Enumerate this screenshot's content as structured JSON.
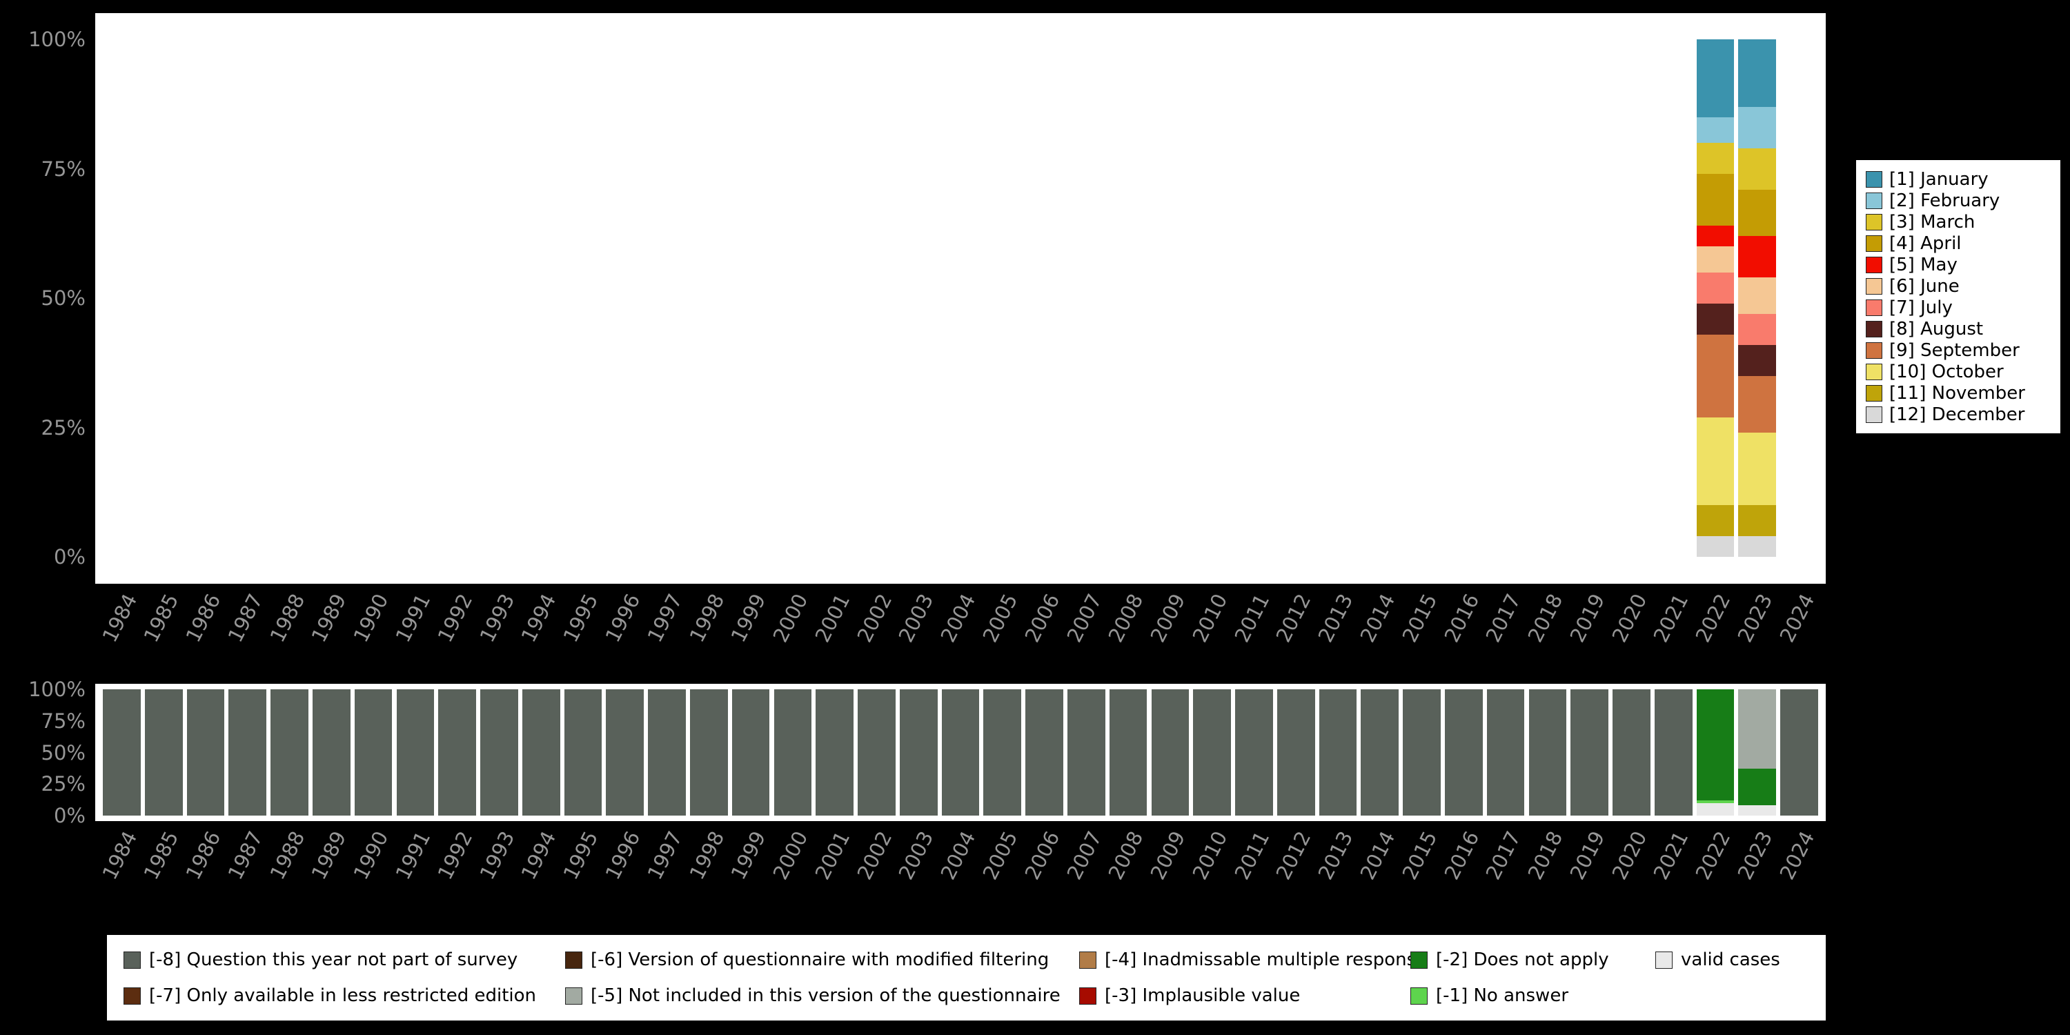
{
  "colors": {
    "background": "#000000",
    "panel": "#ffffff",
    "axis_text": "#969696"
  },
  "chart_data": [
    {
      "id": "months",
      "type": "bar",
      "stacked": true,
      "title": "",
      "xlabel": "",
      "ylabel": "",
      "ylim": [
        0,
        100
      ],
      "grid": false,
      "legend_position": "right",
      "yticks": [
        0,
        25,
        50,
        75,
        100
      ],
      "ytick_labels": [
        "0%",
        "25%",
        "50%",
        "75%",
        "100%"
      ],
      "x": [
        "1984",
        "1985",
        "1986",
        "1987",
        "1988",
        "1989",
        "1990",
        "1991",
        "1992",
        "1993",
        "1994",
        "1995",
        "1996",
        "1997",
        "1998",
        "1999",
        "2000",
        "2001",
        "2002",
        "2003",
        "2004",
        "2005",
        "2006",
        "2007",
        "2008",
        "2009",
        "2010",
        "2011",
        "2012",
        "2013",
        "2014",
        "2015",
        "2016",
        "2017",
        "2018",
        "2019",
        "2020",
        "2021",
        "2022",
        "2023",
        "2024"
      ],
      "series": [
        {
          "name": "[1] January",
          "color": "#3b93ad",
          "default": 0,
          "values": {
            "2022": 15,
            "2023": 13
          }
        },
        {
          "name": "[2] February",
          "color": "#89c6d8",
          "default": 0,
          "values": {
            "2022": 5,
            "2023": 8
          }
        },
        {
          "name": "[3] March",
          "color": "#ddc428",
          "default": 0,
          "values": {
            "2022": 6,
            "2023": 8
          }
        },
        {
          "name": "[4] April",
          "color": "#c49c04",
          "default": 0,
          "values": {
            "2022": 10,
            "2023": 9
          }
        },
        {
          "name": "[5] May",
          "color": "#f20d00",
          "default": 0,
          "values": {
            "2022": 4,
            "2023": 8
          }
        },
        {
          "name": "[6] June",
          "color": "#f5c794",
          "default": 0,
          "values": {
            "2022": 5,
            "2023": 7
          }
        },
        {
          "name": "[7] July",
          "color": "#f97b6c",
          "default": 0,
          "values": {
            "2022": 6,
            "2023": 6
          }
        },
        {
          "name": "[8] August",
          "color": "#54211d",
          "default": 0,
          "values": {
            "2022": 6,
            "2023": 6
          }
        },
        {
          "name": "[9] September",
          "color": "#cf7340",
          "default": 0,
          "values": {
            "2022": 16,
            "2023": 11
          }
        },
        {
          "name": "[10] October",
          "color": "#efe165",
          "default": 0,
          "values": {
            "2022": 17,
            "2023": 14
          }
        },
        {
          "name": "[11] November",
          "color": "#bfa40a",
          "default": 0,
          "values": {
            "2022": 6,
            "2023": 6
          }
        },
        {
          "name": "[12] December",
          "color": "#d9d9d9",
          "default": 0,
          "values": {
            "2022": 4,
            "2023": 4
          }
        }
      ]
    },
    {
      "id": "missing",
      "type": "bar",
      "stacked": true,
      "title": "",
      "xlabel": "",
      "ylabel": "",
      "ylim": [
        0,
        100
      ],
      "grid": false,
      "legend_position": "bottom",
      "yticks": [
        0,
        25,
        50,
        75,
        100
      ],
      "ytick_labels": [
        "0%",
        "25%",
        "50%",
        "75%",
        "100%"
      ],
      "x": [
        "1984",
        "1985",
        "1986",
        "1987",
        "1988",
        "1989",
        "1990",
        "1991",
        "1992",
        "1993",
        "1994",
        "1995",
        "1996",
        "1997",
        "1998",
        "1999",
        "2000",
        "2001",
        "2002",
        "2003",
        "2004",
        "2005",
        "2006",
        "2007",
        "2008",
        "2009",
        "2010",
        "2011",
        "2012",
        "2013",
        "2014",
        "2015",
        "2016",
        "2017",
        "2018",
        "2019",
        "2020",
        "2021",
        "2022",
        "2023",
        "2024"
      ],
      "series": [
        {
          "name": "[-8] Question this year not part of survey",
          "color": "#59615a",
          "default": 100,
          "values": {
            "2022": 0,
            "2023": 0
          }
        },
        {
          "name": "[-7] Only available in less restricted edition",
          "color": "#5c2d10",
          "default": 0,
          "values": {}
        },
        {
          "name": "[-6] Version of questionnaire with modified filtering",
          "color": "#47260f",
          "default": 0,
          "values": {}
        },
        {
          "name": "[-5] Not included in this version of the questionnaire",
          "color": "#a2aaa2",
          "default": 0,
          "values": {
            "2023": 63
          }
        },
        {
          "name": "[-4] Inadmissable multiple response",
          "color": "#b17c47",
          "default": 0,
          "values": {}
        },
        {
          "name": "[-3] Implausible value",
          "color": "#a60b00",
          "default": 0,
          "values": {}
        },
        {
          "name": "[-2] Does not apply",
          "color": "#177d17",
          "default": 0,
          "values": {
            "2022": 88,
            "2023": 29
          }
        },
        {
          "name": "[-1] No answer",
          "color": "#5ed44d",
          "default": 0,
          "values": {
            "2022": 2
          }
        },
        {
          "name": "valid cases",
          "color": "#e9e9e9",
          "default": 0,
          "values": {
            "2022": 10,
            "2023": 8
          }
        }
      ]
    }
  ]
}
